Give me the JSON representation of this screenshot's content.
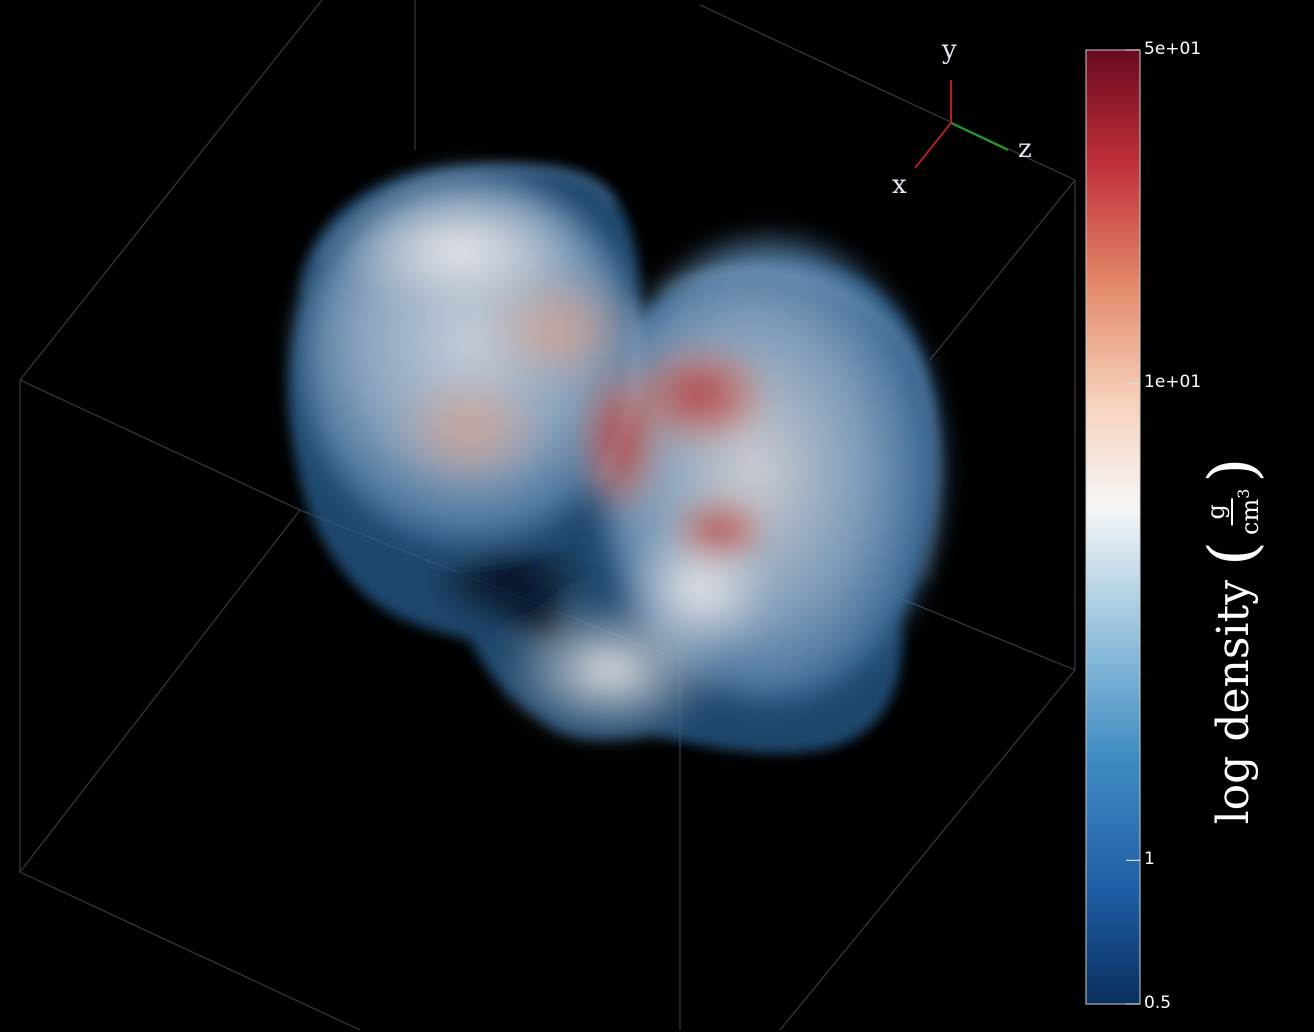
{
  "axes": {
    "x_label": "x",
    "y_label": "y",
    "z_label": "z",
    "x_color": "#b02020",
    "y_color": "#b02020",
    "z_color": "#20a020"
  },
  "colorbar": {
    "title": "log density",
    "unit_numerator": "g",
    "unit_denominator": "cm",
    "unit_power": "3",
    "colormap": "RdBu_r",
    "scale": "log",
    "range": [
      0.5,
      50
    ],
    "ticks": [
      {
        "label": "5e+01",
        "value": 50
      },
      {
        "label": "1e+01",
        "value": 10
      },
      {
        "label": "1",
        "value": 1
      },
      {
        "label": "0.5",
        "value": 0.5
      }
    ]
  },
  "colors": {
    "background": "#000000",
    "bounding_box": "#3a3a3a",
    "low": "#0e3a6e",
    "mid": "#f4f1ef",
    "high": "#6a0a1e"
  }
}
